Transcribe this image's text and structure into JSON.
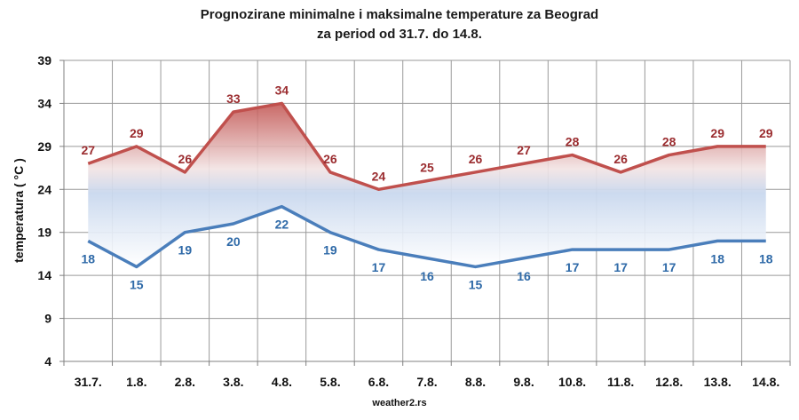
{
  "chart_data": {
    "type": "area",
    "title": "Prognozirane minimalne  i maksimalne  temperature za Beograd",
    "subtitle": "za period od 31.7. do 14.8.",
    "xlabel": "",
    "ylabel": "temperatura  ( °C )",
    "categories": [
      "31.7.",
      "1.8.",
      "2.8.",
      "3.8.",
      "4.8.",
      "5.8.",
      "6.8.",
      "7.8.",
      "8.8.",
      "9.8.",
      "10.8.",
      "11.8.",
      "12.8.",
      "13.8.",
      "14.8."
    ],
    "series": [
      {
        "key": "max",
        "values": [
          27,
          29,
          26,
          33,
          34,
          26,
          24,
          25,
          26,
          27,
          28,
          26,
          28,
          29,
          29
        ],
        "color": "#c0504d"
      },
      {
        "key": "min",
        "values": [
          18,
          15,
          19,
          20,
          22,
          19,
          17,
          16,
          15,
          16,
          17,
          17,
          17,
          18,
          18
        ],
        "color": "#4a7ebb"
      }
    ],
    "yticks": [
      "4",
      "9",
      "14",
      "19",
      "24",
      "29",
      "34",
      "39"
    ],
    "ylim": [
      4,
      39
    ],
    "grid": true,
    "fill_between": {
      "top_color": "#c0504d",
      "bottom_color": "#8fb3df"
    }
  },
  "credit": "weather2.rs"
}
